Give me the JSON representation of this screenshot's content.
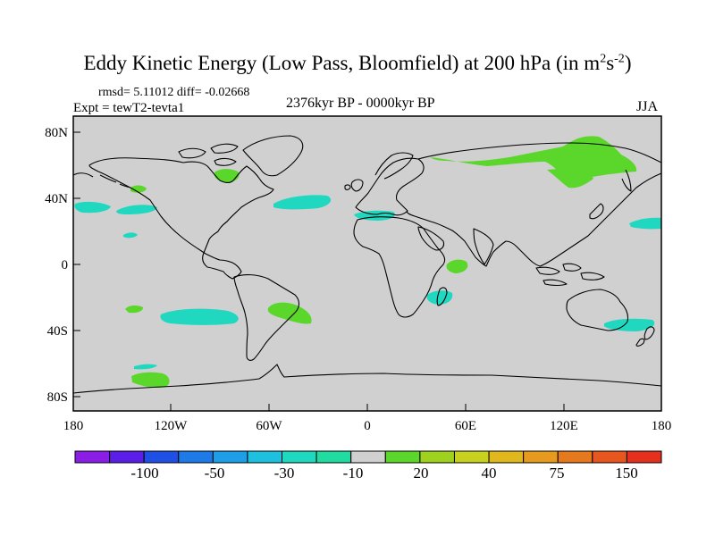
{
  "title": {
    "main": "Eddy Kinetic Energy (Low Pass, Bloomfield) at 200 hPa (in m",
    "sup1": "2",
    "mid": "s",
    "sup2": "-2",
    "close": ")"
  },
  "stats": {
    "rmsd": "rmsd= 5.11012 diff= -0.02668"
  },
  "experiment": "Expt = tewT2-tevta1",
  "period": "2376kyr BP - 0000kyr BP",
  "season": "JJA",
  "map": {
    "lon_range": [
      -180,
      180
    ],
    "lat_range": [
      -90,
      90
    ],
    "lat_ticks": [
      "80N",
      "40N",
      "0",
      "40S",
      "80S"
    ],
    "lon_ticks": [
      "180",
      "120W",
      "60W",
      "0",
      "60E",
      "120E",
      "180"
    ],
    "background_color": "#d0d0d0",
    "regions": [
      {
        "id": "n-europe-russia",
        "color": "#5bd62a",
        "kind": "positive"
      },
      {
        "id": "nw-pacific-kamchatka",
        "color": "#5bd62a",
        "kind": "positive"
      },
      {
        "id": "hudson-bay",
        "color": "#5bd62a",
        "kind": "positive"
      },
      {
        "id": "ne-pacific-small",
        "color": "#5bd62a",
        "kind": "positive"
      },
      {
        "id": "indian-ocean-east-africa",
        "color": "#5bd62a",
        "kind": "positive"
      },
      {
        "id": "se-pacific",
        "color": "#5bd62a",
        "kind": "positive"
      },
      {
        "id": "s-atlantic-argentina",
        "color": "#5bd62a",
        "kind": "positive"
      },
      {
        "id": "s-pacific-south",
        "color": "#5bd62a",
        "kind": "positive"
      },
      {
        "id": "north-pacific-west",
        "color": "#20d8c0",
        "kind": "negative"
      },
      {
        "id": "north-atlantic",
        "color": "#20d8c0",
        "kind": "negative"
      },
      {
        "id": "europe-mediterranean",
        "color": "#20d8c0",
        "kind": "negative"
      },
      {
        "id": "nw-pacific-asia",
        "color": "#20d8c0",
        "kind": "negative"
      },
      {
        "id": "n-pacific-east",
        "color": "#20d8c0",
        "kind": "negative"
      },
      {
        "id": "s-pacific-mid",
        "color": "#20d8c0",
        "kind": "negative"
      },
      {
        "id": "madagascar",
        "color": "#20d8c0",
        "kind": "negative"
      },
      {
        "id": "australia-south",
        "color": "#20d8c0",
        "kind": "negative"
      },
      {
        "id": "s-pacific-far-south",
        "color": "#20d8c0",
        "kind": "negative"
      }
    ]
  },
  "colorbar": {
    "colors": [
      "#8a1ee6",
      "#5a1ee6",
      "#1e50e6",
      "#1e7ae6",
      "#1e9ee6",
      "#1ec0e0",
      "#20d8c0",
      "#20dca0",
      "#d0d0d0",
      "#5bd62a",
      "#9ed21e",
      "#c8d21e",
      "#e0b81e",
      "#e69a1e",
      "#e6781e",
      "#e6561e",
      "#e6301e"
    ],
    "labels": [
      "-100",
      "-50",
      "-30",
      "-10",
      "20",
      "40",
      "75",
      "150"
    ]
  }
}
